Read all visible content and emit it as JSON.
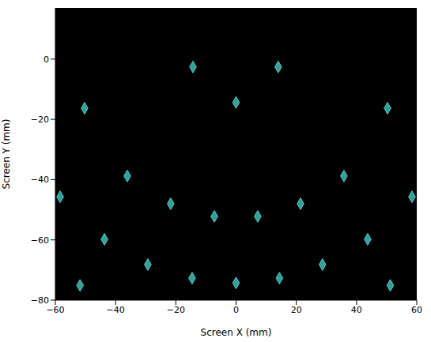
{
  "chart_data": {
    "type": "scatter",
    "x_label": "Screen X (mm)",
    "y_label": "Screen Y (mm)",
    "xlim": [
      -60,
      60
    ],
    "ylim": [
      -80,
      17
    ],
    "xticks": [
      {
        "value": -60,
        "label": "−60"
      },
      {
        "value": -40,
        "label": "−40"
      },
      {
        "value": -20,
        "label": "−20"
      },
      0,
      20,
      40,
      60
    ],
    "yticks": [
      {
        "value": -80,
        "label": "−80"
      },
      {
        "value": -60,
        "label": "−60"
      },
      {
        "value": -40,
        "label": "−40"
      },
      {
        "value": -20,
        "label": "−20"
      },
      0
    ],
    "grid": false,
    "color": "#48d1cc",
    "marker": "diamond",
    "x": [
      -14.3,
      14.0,
      0,
      -50.3,
      50.3,
      -36.1,
      35.8,
      -58.4,
      58.4,
      -21.7,
      21.4,
      -7.2,
      7.2,
      -43.7,
      43.7,
      -29.3,
      28.7,
      -14.6,
      0,
      14.4,
      -51.8,
      51.2
    ],
    "values": [
      -2.6,
      -2.6,
      -14.4,
      -16.3,
      -16.3,
      -38.8,
      -38.8,
      -45.7,
      -45.7,
      -48.0,
      -48.0,
      -52.2,
      -52.2,
      -59.8,
      -59.8,
      -68.2,
      -68.2,
      -72.7,
      -74.3,
      -72.7,
      -75.1,
      -75.1
    ]
  }
}
